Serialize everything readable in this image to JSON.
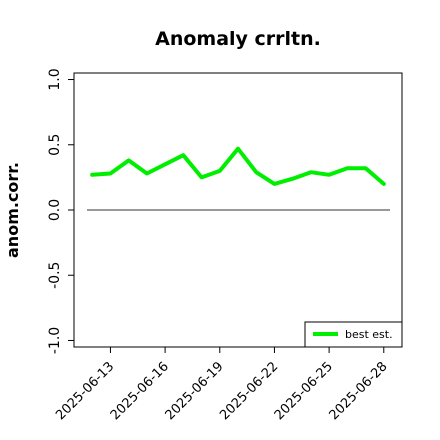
{
  "chart_data": {
    "type": "line",
    "title": "Anomaly crrltn.",
    "xlabel": "",
    "ylabel": "anom.corr.",
    "x": [
      "2025-06-12",
      "2025-06-13",
      "2025-06-14",
      "2025-06-15",
      "2025-06-16",
      "2025-06-17",
      "2025-06-18",
      "2025-06-19",
      "2025-06-20",
      "2025-06-21",
      "2025-06-22",
      "2025-06-23",
      "2025-06-24",
      "2025-06-25",
      "2025-06-26",
      "2025-06-27",
      "2025-06-28"
    ],
    "x_tick_labels": [
      "2025-06-13",
      "2025-06-16",
      "2025-06-19",
      "2025-06-22",
      "2025-06-25",
      "2025-06-28"
    ],
    "highlight_tick": "2025-06-19",
    "highlight_color": "#228B22",
    "xlim": [
      "2025-06-11",
      "2025-06-29"
    ],
    "ylim": [
      -1.05,
      1.05
    ],
    "y_ticks": [
      -1.0,
      -0.5,
      0.0,
      0.5,
      1.0
    ],
    "y_tick_labels": [
      "-1.0",
      "-0.5",
      "0.0",
      "0.5",
      "1.0"
    ],
    "reference_line": 0.0,
    "series": [
      {
        "name": "best est.",
        "color": "#00ee00",
        "values": [
          0.27,
          0.28,
          0.38,
          0.28,
          0.35,
          0.42,
          0.25,
          0.3,
          0.47,
          0.29,
          0.2,
          0.24,
          0.29,
          0.27,
          0.32,
          0.32,
          0.2
        ]
      }
    ],
    "legend": {
      "position": "bottom-right",
      "entries": [
        "best est."
      ]
    },
    "grid": false
  }
}
